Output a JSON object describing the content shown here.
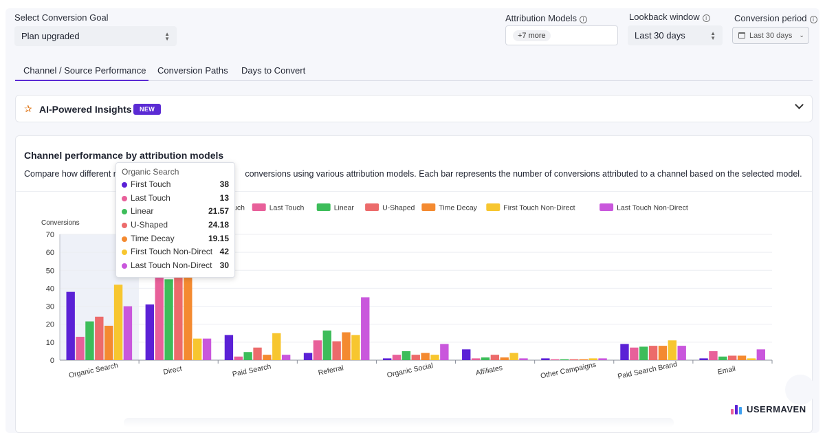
{
  "goal": {
    "label": "Select Conversion Goal",
    "value": "Plan upgraded"
  },
  "attribution": {
    "label": "Attribution Models",
    "chip": "+7 more"
  },
  "lookback": {
    "label": "Lookback window",
    "value": "Last 30 days"
  },
  "period": {
    "label": "Conversion period",
    "value": "Last 30 days"
  },
  "tabs": [
    {
      "label": "Channel / Source Performance",
      "active": true
    },
    {
      "label": "Conversion Paths",
      "active": false
    },
    {
      "label": "Days to Convert",
      "active": false
    }
  ],
  "insights": {
    "title": "AI-Powered Insights",
    "badge": "NEW"
  },
  "card": {
    "title": "Channel performance by attribution models",
    "desc_before": "Compare how different r",
    "desc_after": " conversions using various attribution models. Each bar represents the number of conversions attributed to a channel based on the selected model."
  },
  "tooltip": {
    "title": "Organic Search",
    "rows": [
      {
        "name": "First Touch",
        "value": "38"
      },
      {
        "name": "Last Touch",
        "value": "13"
      },
      {
        "name": "Linear",
        "value": "21.57"
      },
      {
        "name": "U-Shaped",
        "value": "24.18"
      },
      {
        "name": "Time Decay",
        "value": "19.15"
      },
      {
        "name": "First Touch Non-Direct",
        "value": "42"
      },
      {
        "name": "Last Touch Non-Direct",
        "value": "30"
      }
    ]
  },
  "logo": {
    "text": "USERMAVEN"
  },
  "chart_data": {
    "type": "bar",
    "ylabel": "Conversions",
    "ylim": [
      0,
      70
    ],
    "yticks": [
      0,
      10,
      20,
      30,
      40,
      50,
      60,
      70
    ],
    "categories": [
      "Organic Search",
      "Direct",
      "Paid Search",
      "Referral",
      "Organic Social",
      "Affiliates",
      "Other Campaigns",
      "Paid Search Brand",
      "Email"
    ],
    "legend_visible": [
      "uch",
      "Last Touch",
      "Linear",
      "U-Shaped",
      "Time Decay",
      "First Touch Non-Direct",
      "Last Touch Non-Direct"
    ],
    "series": [
      {
        "name": "First Touch",
        "color": "#5b21d6",
        "values": [
          38,
          31,
          14,
          4,
          1,
          6,
          1,
          9,
          1
        ]
      },
      {
        "name": "Last Touch",
        "color": "#e8609a",
        "values": [
          13,
          48,
          2,
          11,
          3,
          1,
          0.5,
          7,
          5
        ]
      },
      {
        "name": "Linear",
        "color": "#3dbd5a",
        "values": [
          21.57,
          45,
          4.5,
          16.5,
          5,
          1.5,
          0.5,
          7.5,
          2
        ]
      },
      {
        "name": "U-Shaped",
        "color": "#ec6b6b",
        "values": [
          24.18,
          48,
          7,
          10.5,
          3,
          3,
          0.5,
          8,
          2.5
        ]
      },
      {
        "name": "Time Decay",
        "color": "#f48a30",
        "values": [
          19.15,
          48,
          3,
          15.5,
          4,
          1.5,
          0.5,
          8,
          2.5
        ]
      },
      {
        "name": "First Touch Non-Direct",
        "color": "#f7c62f",
        "values": [
          42,
          12,
          15,
          14,
          3,
          4,
          1,
          11,
          1
        ]
      },
      {
        "name": "Last Touch Non-Direct",
        "color": "#c957dc",
        "values": [
          30,
          12,
          3,
          35,
          9,
          1,
          1,
          8,
          6
        ]
      }
    ],
    "highlighted_category": "Organic Search"
  }
}
